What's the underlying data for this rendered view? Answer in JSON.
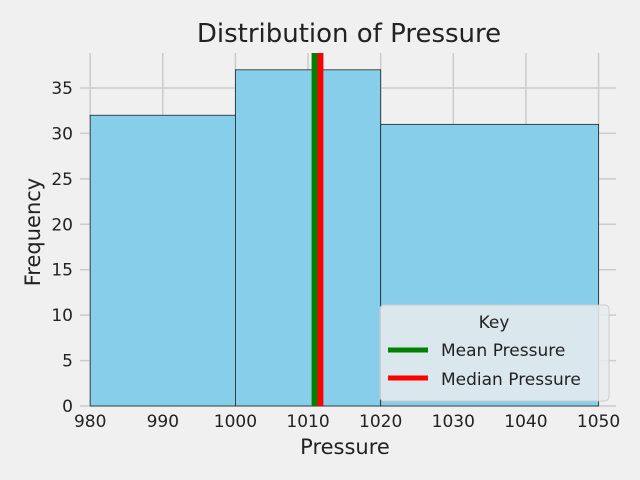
{
  "chart_data": {
    "type": "bar",
    "title": "Distribution of Pressure",
    "xlabel": "Pressure",
    "ylabel": "Frequency",
    "xlim": [
      978.6,
      1052.4
    ],
    "ylim": [
      0,
      38.85
    ],
    "xticks": [
      980,
      990,
      1000,
      1010,
      1020,
      1030,
      1040,
      1050
    ],
    "yticks": [
      0,
      5,
      10,
      15,
      20,
      25,
      30,
      35
    ],
    "grid": true,
    "bins": [
      {
        "x0": 980,
        "x1": 1000,
        "value": 32
      },
      {
        "x0": 1000,
        "x1": 1020,
        "value": 37
      },
      {
        "x0": 1020,
        "x1": 1050,
        "value": 31
      }
    ],
    "bar_color": "#87ceeb",
    "reference_lines": [
      {
        "name": "Mean Pressure",
        "x": 1010.9,
        "color": "#008000"
      },
      {
        "name": "Median Pressure",
        "x": 1011.7,
        "color": "#ff0000"
      }
    ],
    "legend": {
      "title": "Key",
      "location": "lower-right"
    }
  }
}
